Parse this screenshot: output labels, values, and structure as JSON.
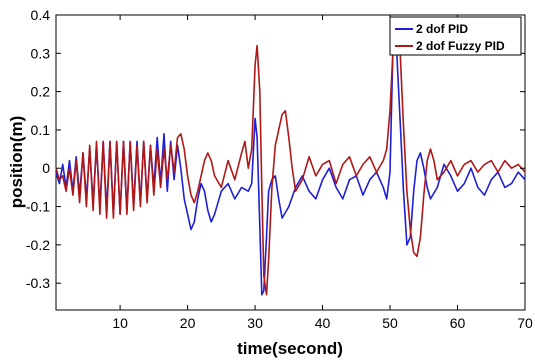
{
  "chart_data": {
    "type": "line",
    "title": "",
    "xlabel": "time(second)",
    "ylabel": "position(m)",
    "xlim": [
      0.5,
      70
    ],
    "ylim": [
      -0.37,
      0.4
    ],
    "xticks": [
      10,
      20,
      30,
      40,
      50,
      60,
      70
    ],
    "xtick_labels": [
      "10",
      "20",
      "30",
      "40",
      "50",
      "60",
      "70"
    ],
    "yticks": [
      -0.3,
      -0.2,
      -0.1,
      0,
      0.1,
      0.2,
      0.3,
      0.4
    ],
    "ytick_labels": [
      "-0.3",
      "-0.2",
      "-0.1",
      "0",
      "0.1",
      "0.2",
      "0.3",
      "0.4"
    ],
    "grid": false,
    "legend_position": "top-right",
    "series": [
      {
        "name": "2 dof PID",
        "color": "#1f1fd6",
        "x": [
          0.5,
          1.0,
          1.5,
          2.0,
          2.5,
          3.0,
          3.5,
          4.0,
          4.5,
          5.0,
          5.5,
          6.0,
          6.5,
          7.0,
          7.5,
          8.0,
          8.5,
          9.0,
          9.5,
          10.0,
          10.5,
          11.0,
          11.5,
          12.0,
          12.5,
          13.0,
          13.5,
          14.0,
          14.5,
          15.0,
          15.5,
          16.0,
          16.5,
          17.0,
          17.5,
          18.0,
          18.5,
          19.0,
          19.5,
          20.0,
          20.5,
          21.0,
          21.5,
          22.0,
          22.5,
          23.0,
          23.5,
          24.0,
          25.0,
          26.0,
          27.0,
          28.0,
          29.0,
          29.5,
          30.0,
          30.3,
          30.7,
          31.0,
          31.3,
          31.7,
          32.0,
          32.5,
          33.0,
          33.5,
          34.0,
          35.0,
          36.0,
          37.0,
          38.0,
          39.0,
          40.0,
          41.0,
          42.0,
          43.0,
          44.0,
          45.0,
          46.0,
          47.0,
          48.0,
          49.0,
          49.5,
          50.0,
          50.5,
          51.0,
          51.5,
          52.0,
          52.5,
          53.0,
          53.5,
          54.0,
          54.5,
          55.0,
          55.5,
          56.0,
          57.0,
          58.0,
          59.0,
          60.0,
          61.0,
          62.0,
          63.0,
          64.0,
          65.0,
          66.0,
          67.0,
          68.0,
          69.0,
          70.0
        ],
        "y": [
          -0.01,
          -0.04,
          0.01,
          -0.05,
          0.02,
          -0.06,
          0.03,
          -0.07,
          0.04,
          -0.08,
          0.05,
          -0.09,
          0.06,
          -0.1,
          0.07,
          -0.11,
          0.07,
          -0.12,
          0.07,
          -0.12,
          0.07,
          -0.11,
          0.07,
          -0.1,
          0.07,
          -0.09,
          0.07,
          -0.08,
          0.06,
          -0.05,
          0.08,
          -0.04,
          0.09,
          -0.06,
          0.07,
          -0.03,
          0.06,
          0.0,
          -0.08,
          -0.12,
          -0.16,
          -0.14,
          -0.08,
          -0.04,
          -0.06,
          -0.11,
          -0.14,
          -0.12,
          -0.06,
          -0.04,
          -0.08,
          -0.05,
          -0.06,
          -0.04,
          0.13,
          0.08,
          -0.15,
          -0.33,
          -0.32,
          -0.18,
          -0.06,
          -0.03,
          -0.02,
          -0.08,
          -0.13,
          -0.1,
          -0.05,
          -0.02,
          -0.06,
          -0.08,
          -0.03,
          -0.0,
          -0.05,
          -0.08,
          -0.03,
          -0.02,
          -0.07,
          -0.03,
          -0.01,
          -0.05,
          -0.08,
          -0.01,
          0.36,
          0.3,
          0.12,
          -0.06,
          -0.2,
          -0.18,
          -0.06,
          0.02,
          0.04,
          0.0,
          -0.05,
          -0.08,
          -0.05,
          0.01,
          -0.02,
          -0.06,
          -0.04,
          -0.0,
          -0.05,
          -0.07,
          -0.03,
          -0.01,
          -0.05,
          -0.04,
          -0.01,
          -0.03
        ]
      },
      {
        "name": "2 dof Fuzzy PID",
        "color": "#b01818",
        "x": [
          0.5,
          1.0,
          1.5,
          2.0,
          2.5,
          3.0,
          3.5,
          4.0,
          4.5,
          5.0,
          5.5,
          6.0,
          6.5,
          7.0,
          7.5,
          8.0,
          8.5,
          9.0,
          9.5,
          10.0,
          10.5,
          11.0,
          11.5,
          12.0,
          12.5,
          13.0,
          13.5,
          14.0,
          14.5,
          15.0,
          15.5,
          16.0,
          16.5,
          17.0,
          17.5,
          18.0,
          18.5,
          19.0,
          19.5,
          20.0,
          20.5,
          21.0,
          21.5,
          22.0,
          22.5,
          23.0,
          23.5,
          24.0,
          25.0,
          26.0,
          27.0,
          28.0,
          28.5,
          29.0,
          29.5,
          30.0,
          30.3,
          30.7,
          31.0,
          31.3,
          31.7,
          32.0,
          32.5,
          33.0,
          33.5,
          34.0,
          34.5,
          35.0,
          35.5,
          36.0,
          37.0,
          38.0,
          39.0,
          40.0,
          41.0,
          42.0,
          43.0,
          44.0,
          45.0,
          46.0,
          47.0,
          48.0,
          49.0,
          49.5,
          50.0,
          50.5,
          51.0,
          51.5,
          52.0,
          52.5,
          53.0,
          53.5,
          54.0,
          54.5,
          55.0,
          55.5,
          56.0,
          56.5,
          57.0,
          58.0,
          59.0,
          60.0,
          61.0,
          62.0,
          63.0,
          64.0,
          65.0,
          66.0,
          67.0,
          68.0,
          69.0,
          70.0
        ],
        "y": [
          0.0,
          -0.03,
          -0.02,
          -0.06,
          0.0,
          -0.07,
          0.02,
          -0.09,
          0.04,
          -0.1,
          0.06,
          -0.11,
          0.07,
          -0.12,
          0.07,
          -0.13,
          0.07,
          -0.13,
          0.07,
          -0.12,
          0.07,
          -0.12,
          0.07,
          -0.11,
          0.06,
          -0.1,
          0.07,
          -0.09,
          0.06,
          -0.07,
          0.05,
          -0.05,
          0.05,
          -0.03,
          0.06,
          -0.01,
          0.08,
          0.09,
          0.05,
          -0.02,
          -0.07,
          -0.09,
          -0.06,
          -0.02,
          0.02,
          0.04,
          0.02,
          -0.02,
          -0.05,
          0.02,
          -0.03,
          0.04,
          0.07,
          0.0,
          0.05,
          0.27,
          0.32,
          0.2,
          -0.05,
          -0.28,
          -0.33,
          -0.24,
          -0.05,
          0.06,
          0.1,
          0.14,
          0.15,
          0.08,
          0.0,
          -0.06,
          -0.03,
          0.03,
          -0.02,
          0.01,
          0.02,
          -0.04,
          0.01,
          0.03,
          -0.02,
          0.01,
          0.03,
          -0.01,
          0.02,
          0.05,
          0.15,
          0.33,
          0.37,
          0.3,
          0.11,
          -0.06,
          -0.16,
          -0.22,
          -0.23,
          -0.18,
          -0.07,
          0.02,
          0.05,
          0.02,
          -0.03,
          -0.01,
          0.02,
          -0.02,
          0.01,
          0.02,
          -0.01,
          0.01,
          0.02,
          -0.01,
          0.02,
          0.0,
          0.01,
          -0.01
        ]
      }
    ]
  }
}
